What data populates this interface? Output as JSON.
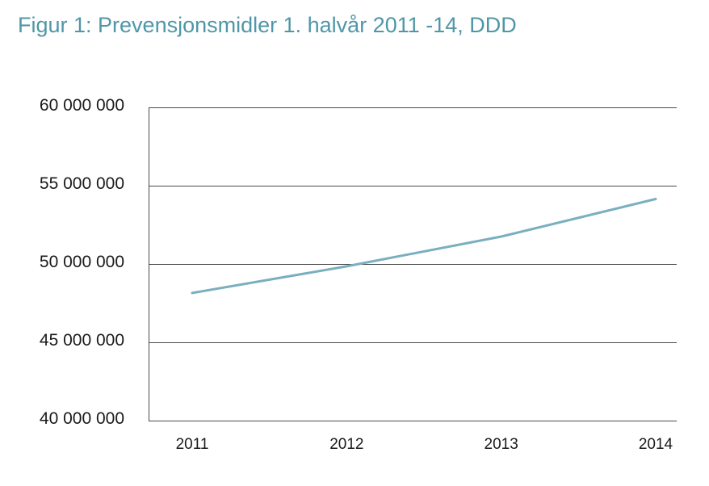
{
  "chart_data": {
    "type": "line",
    "title": "Figur 1: Prevensjonsmidler 1. halvår 2011 -14, DDD",
    "xlabel": "",
    "ylabel": "",
    "categories": [
      "2011",
      "2012",
      "2013",
      "2014"
    ],
    "series": [
      {
        "values": [
          48150000,
          49850000,
          51750000,
          54150000
        ]
      }
    ],
    "ylim": [
      40000000,
      60000000
    ],
    "yticks": [
      60000000,
      55000000,
      50000000,
      45000000,
      40000000
    ],
    "ytick_labels": [
      "60 000 000",
      "55 000 000",
      "50 000 000",
      "45 000 000",
      "40 000 000"
    ],
    "grid": true,
    "legend": "none",
    "colors": {
      "title": "#4f97a7",
      "line": "#7aafc0",
      "grid": "#4a4a4a",
      "text": "#1a1a1a"
    }
  }
}
